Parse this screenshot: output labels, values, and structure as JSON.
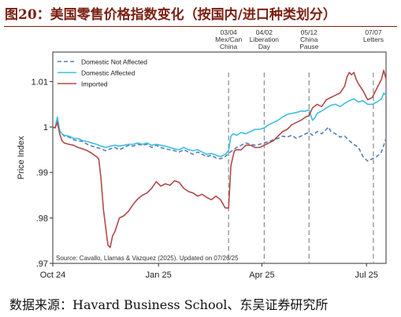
{
  "title": "图20：美国零售价格指数变化（按国内/进口种类划分）",
  "source": "数据来源：Havard Business School、东吴证券研究所",
  "chart_data": {
    "type": "line",
    "ylabel": "Price Index",
    "xlabel": "",
    "ylim": [
      0.97,
      1.0165
    ],
    "xlim": [
      0,
      290
    ],
    "x_ticks": [
      {
        "x": 0,
        "label": "Oct 24"
      },
      {
        "x": 92,
        "label": "Jan 25"
      },
      {
        "x": 182,
        "label": "Apr 25"
      },
      {
        "x": 273,
        "label": "Jul 25"
      }
    ],
    "y_ticks": [
      {
        "v": 0.97,
        "label": ".97"
      },
      {
        "v": 0.98,
        "label": ".98"
      },
      {
        "v": 0.99,
        "label": ".99"
      },
      {
        "v": 1.0,
        "label": "1"
      },
      {
        "v": 1.01,
        "label": "1.01"
      }
    ],
    "annotations": [
      {
        "x": 153,
        "lines": [
          "03/04",
          "Mex/Can",
          "China"
        ]
      },
      {
        "x": 184,
        "lines": [
          "04/02",
          "Liberation",
          "Day"
        ]
      },
      {
        "x": 223,
        "lines": [
          "05/12",
          "China",
          "Pause"
        ]
      },
      {
        "x": 279,
        "lines": [
          "07/07",
          "Letters"
        ]
      }
    ],
    "note": "Source: Cavallo, Llamas & Vazquez (2025). Updated on 07/26/25",
    "legend_position": "top-left",
    "series": [
      {
        "name": "Domestic Not Affected",
        "color": "#5b7fb0",
        "dash": "5,3",
        "points": [
          [
            0,
            1.0
          ],
          [
            2,
            0.9998
          ],
          [
            4,
            1.0015
          ],
          [
            6,
            0.999
          ],
          [
            8,
            0.9985
          ],
          [
            10,
            0.998
          ],
          [
            14,
            0.9978
          ],
          [
            18,
            0.9972
          ],
          [
            22,
            0.997
          ],
          [
            26,
            0.9968
          ],
          [
            30,
            0.9962
          ],
          [
            34,
            0.9958
          ],
          [
            38,
            0.9955
          ],
          [
            42,
            0.9952
          ],
          [
            46,
            0.9948
          ],
          [
            50,
            0.9952
          ],
          [
            54,
            0.9955
          ],
          [
            58,
            0.995
          ],
          [
            62,
            0.9955
          ],
          [
            66,
            0.996
          ],
          [
            70,
            0.9958
          ],
          [
            74,
            0.9962
          ],
          [
            78,
            0.996
          ],
          [
            82,
            0.9962
          ],
          [
            86,
            0.9955
          ],
          [
            90,
            0.996
          ],
          [
            94,
            0.9955
          ],
          [
            98,
            0.9952
          ],
          [
            102,
            0.995
          ],
          [
            106,
            0.9948
          ],
          [
            110,
            0.9945
          ],
          [
            114,
            0.995
          ],
          [
            118,
            0.9945
          ],
          [
            122,
            0.994
          ],
          [
            126,
            0.9945
          ],
          [
            130,
            0.994
          ],
          [
            134,
            0.9935
          ],
          [
            138,
            0.9938
          ],
          [
            142,
            0.9932
          ],
          [
            146,
            0.993
          ],
          [
            150,
            0.9935
          ],
          [
            153,
            0.9942
          ],
          [
            156,
            0.9948
          ],
          [
            160,
            0.9955
          ],
          [
            164,
            0.996
          ],
          [
            168,
            0.9965
          ],
          [
            172,
            0.9962
          ],
          [
            176,
            0.996
          ],
          [
            180,
            0.9962
          ],
          [
            184,
            0.9965
          ],
          [
            188,
            0.9968
          ],
          [
            192,
            0.9972
          ],
          [
            196,
            0.9975
          ],
          [
            200,
            0.998
          ],
          [
            204,
            0.9978
          ],
          [
            208,
            0.9982
          ],
          [
            212,
            0.9975
          ],
          [
            216,
            0.998
          ],
          [
            220,
            0.9985
          ],
          [
            223,
            0.9988
          ],
          [
            226,
            0.9982
          ],
          [
            230,
            0.999
          ],
          [
            234,
            0.9985
          ],
          [
            238,
            0.9995
          ],
          [
            240,
            1.0
          ],
          [
            242,
            0.999
          ],
          [
            246,
            0.9985
          ],
          [
            250,
            0.9978
          ],
          [
            254,
            0.998
          ],
          [
            258,
            0.997
          ],
          [
            262,
            0.9962
          ],
          [
            266,
            0.9955
          ],
          [
            270,
            0.9935
          ],
          [
            274,
            0.9925
          ],
          [
            278,
            0.993
          ],
          [
            282,
            0.9935
          ],
          [
            286,
            0.9945
          ],
          [
            288,
            0.996
          ],
          [
            290,
            0.9975
          ]
        ]
      },
      {
        "name": "Domestic Affected",
        "color": "#3cbfe5",
        "dash": "",
        "points": [
          [
            0,
            1.0
          ],
          [
            2,
            0.9998
          ],
          [
            4,
            1.0022
          ],
          [
            6,
            0.9992
          ],
          [
            8,
            0.9985
          ],
          [
            10,
            0.9982
          ],
          [
            14,
            0.998
          ],
          [
            18,
            0.9975
          ],
          [
            22,
            0.9975
          ],
          [
            26,
            0.997
          ],
          [
            30,
            0.9968
          ],
          [
            34,
            0.9965
          ],
          [
            38,
            0.9962
          ],
          [
            42,
            0.9958
          ],
          [
            46,
            0.9955
          ],
          [
            50,
            0.9958
          ],
          [
            54,
            0.996
          ],
          [
            58,
            0.9958
          ],
          [
            62,
            0.996
          ],
          [
            66,
            0.9962
          ],
          [
            70,
            0.9962
          ],
          [
            74,
            0.9965
          ],
          [
            78,
            0.9962
          ],
          [
            82,
            0.9965
          ],
          [
            86,
            0.996
          ],
          [
            90,
            0.9962
          ],
          [
            94,
            0.996
          ],
          [
            98,
            0.9958
          ],
          [
            102,
            0.9955
          ],
          [
            106,
            0.9952
          ],
          [
            110,
            0.995
          ],
          [
            114,
            0.9955
          ],
          [
            118,
            0.995
          ],
          [
            122,
            0.9948
          ],
          [
            126,
            0.995
          ],
          [
            130,
            0.9945
          ],
          [
            134,
            0.994
          ],
          [
            138,
            0.9942
          ],
          [
            142,
            0.9938
          ],
          [
            146,
            0.9935
          ],
          [
            150,
            0.994
          ],
          [
            153,
            0.9948
          ],
          [
            155,
            0.998
          ],
          [
            157,
            0.9985
          ],
          [
            160,
            0.9982
          ],
          [
            164,
            0.9988
          ],
          [
            168,
            0.9985
          ],
          [
            172,
            0.999
          ],
          [
            176,
            0.9995
          ],
          [
            180,
            0.9995
          ],
          [
            184,
            0.9998
          ],
          [
            188,
            1.0005
          ],
          [
            192,
            1.001
          ],
          [
            196,
            1.0015
          ],
          [
            200,
            1.0022
          ],
          [
            204,
            1.0028
          ],
          [
            208,
            1.003
          ],
          [
            212,
            1.0032
          ],
          [
            216,
            1.0035
          ],
          [
            220,
            1.0035
          ],
          [
            223,
            1.0038
          ],
          [
            226,
            1.0015
          ],
          [
            228,
            1.002
          ],
          [
            230,
            1.003
          ],
          [
            234,
            1.0035
          ],
          [
            238,
            1.0042
          ],
          [
            242,
            1.0048
          ],
          [
            246,
            1.005
          ],
          [
            250,
            1.0045
          ],
          [
            254,
            1.0052
          ],
          [
            258,
            1.0058
          ],
          [
            262,
            1.0062
          ],
          [
            266,
            1.0055
          ],
          [
            270,
            1.0058
          ],
          [
            274,
            1.005
          ],
          [
            278,
            1.005
          ],
          [
            282,
            1.0055
          ],
          [
            286,
            1.0062
          ],
          [
            288,
            1.0075
          ],
          [
            290,
            1.007
          ]
        ]
      },
      {
        "name": "Imported",
        "color": "#b04a4a",
        "dash": "",
        "points": [
          [
            0,
            1.0
          ],
          [
            2,
            0.9998
          ],
          [
            4,
            1.001
          ],
          [
            6,
            0.9985
          ],
          [
            8,
            0.997
          ],
          [
            10,
            0.9965
          ],
          [
            14,
            0.9962
          ],
          [
            18,
            0.996
          ],
          [
            22,
            0.9955
          ],
          [
            26,
            0.9952
          ],
          [
            30,
            0.9948
          ],
          [
            34,
            0.9942
          ],
          [
            38,
            0.9935
          ],
          [
            40,
            0.993
          ],
          [
            42,
            0.9885
          ],
          [
            44,
            0.982
          ],
          [
            46,
            0.978
          ],
          [
            48,
            0.974
          ],
          [
            50,
            0.9735
          ],
          [
            52,
            0.976
          ],
          [
            54,
            0.977
          ],
          [
            56,
            0.9785
          ],
          [
            58,
            0.98
          ],
          [
            62,
            0.9805
          ],
          [
            66,
            0.9815
          ],
          [
            70,
            0.983
          ],
          [
            74,
            0.9842
          ],
          [
            78,
            0.985
          ],
          [
            82,
            0.9855
          ],
          [
            86,
            0.9865
          ],
          [
            90,
            0.988
          ],
          [
            94,
            0.987
          ],
          [
            98,
            0.9875
          ],
          [
            102,
            0.9872
          ],
          [
            106,
            0.9882
          ],
          [
            110,
            0.9878
          ],
          [
            114,
            0.9865
          ],
          [
            118,
            0.9858
          ],
          [
            122,
            0.9855
          ],
          [
            126,
            0.9848
          ],
          [
            130,
            0.9852
          ],
          [
            134,
            0.9845
          ],
          [
            138,
            0.984
          ],
          [
            142,
            0.9848
          ],
          [
            146,
            0.984
          ],
          [
            150,
            0.9822
          ],
          [
            153,
            0.9822
          ],
          [
            155,
            0.9915
          ],
          [
            158,
            0.9948
          ],
          [
            160,
            0.995
          ],
          [
            164,
            0.995
          ],
          [
            168,
            0.996
          ],
          [
            172,
            0.996
          ],
          [
            176,
            0.9955
          ],
          [
            180,
            0.9955
          ],
          [
            184,
            0.996
          ],
          [
            188,
            0.9965
          ],
          [
            192,
            0.997
          ],
          [
            196,
            0.998
          ],
          [
            200,
            0.999
          ],
          [
            204,
            0.9995
          ],
          [
            208,
            1.0005
          ],
          [
            212,
            1.001
          ],
          [
            216,
            1.0015
          ],
          [
            220,
            1.0022
          ],
          [
            223,
            1.0025
          ],
          [
            226,
            1.0042
          ],
          [
            230,
            1.005
          ],
          [
            234,
            1.0045
          ],
          [
            238,
            1.006
          ],
          [
            242,
            1.0065
          ],
          [
            246,
            1.007
          ],
          [
            250,
            1.0075
          ],
          [
            254,
            1.009
          ],
          [
            256,
            1.011
          ],
          [
            258,
            1.012
          ],
          [
            260,
            1.0115
          ],
          [
            262,
            1.012
          ],
          [
            264,
            1.0105
          ],
          [
            266,
            1.0095
          ],
          [
            270,
            1.008
          ],
          [
            274,
            1.006
          ],
          [
            278,
            1.0065
          ],
          [
            282,
            1.0085
          ],
          [
            286,
            1.0105
          ],
          [
            288,
            1.0125
          ],
          [
            290,
            1.0105
          ]
        ]
      }
    ]
  }
}
